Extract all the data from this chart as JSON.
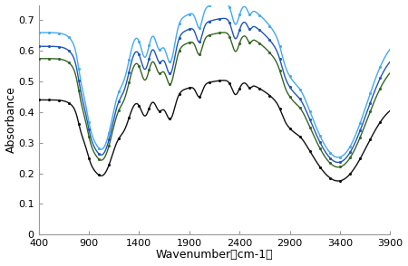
{
  "xlabel": "Wavenumber（cm-1）",
  "ylabel": "Absorbance",
  "xlim": [
    400,
    3900
  ],
  "ylim": [
    0,
    0.75
  ],
  "yticks": [
    0,
    0.1,
    0.2,
    0.3,
    0.4,
    0.5,
    0.6,
    0.7
  ],
  "xticks": [
    400,
    900,
    1400,
    1900,
    2400,
    2900,
    3400,
    3900
  ],
  "colors": [
    "#44AAEE",
    "#2255BB",
    "#336622",
    "#111111"
  ],
  "figsize": [
    4.5,
    2.94
  ],
  "dpi": 100,
  "background": "#ffffff",
  "base_levels": [
    0.66,
    0.615,
    0.575,
    0.44
  ],
  "scales": [
    1.0,
    0.93,
    0.87,
    0.65
  ]
}
